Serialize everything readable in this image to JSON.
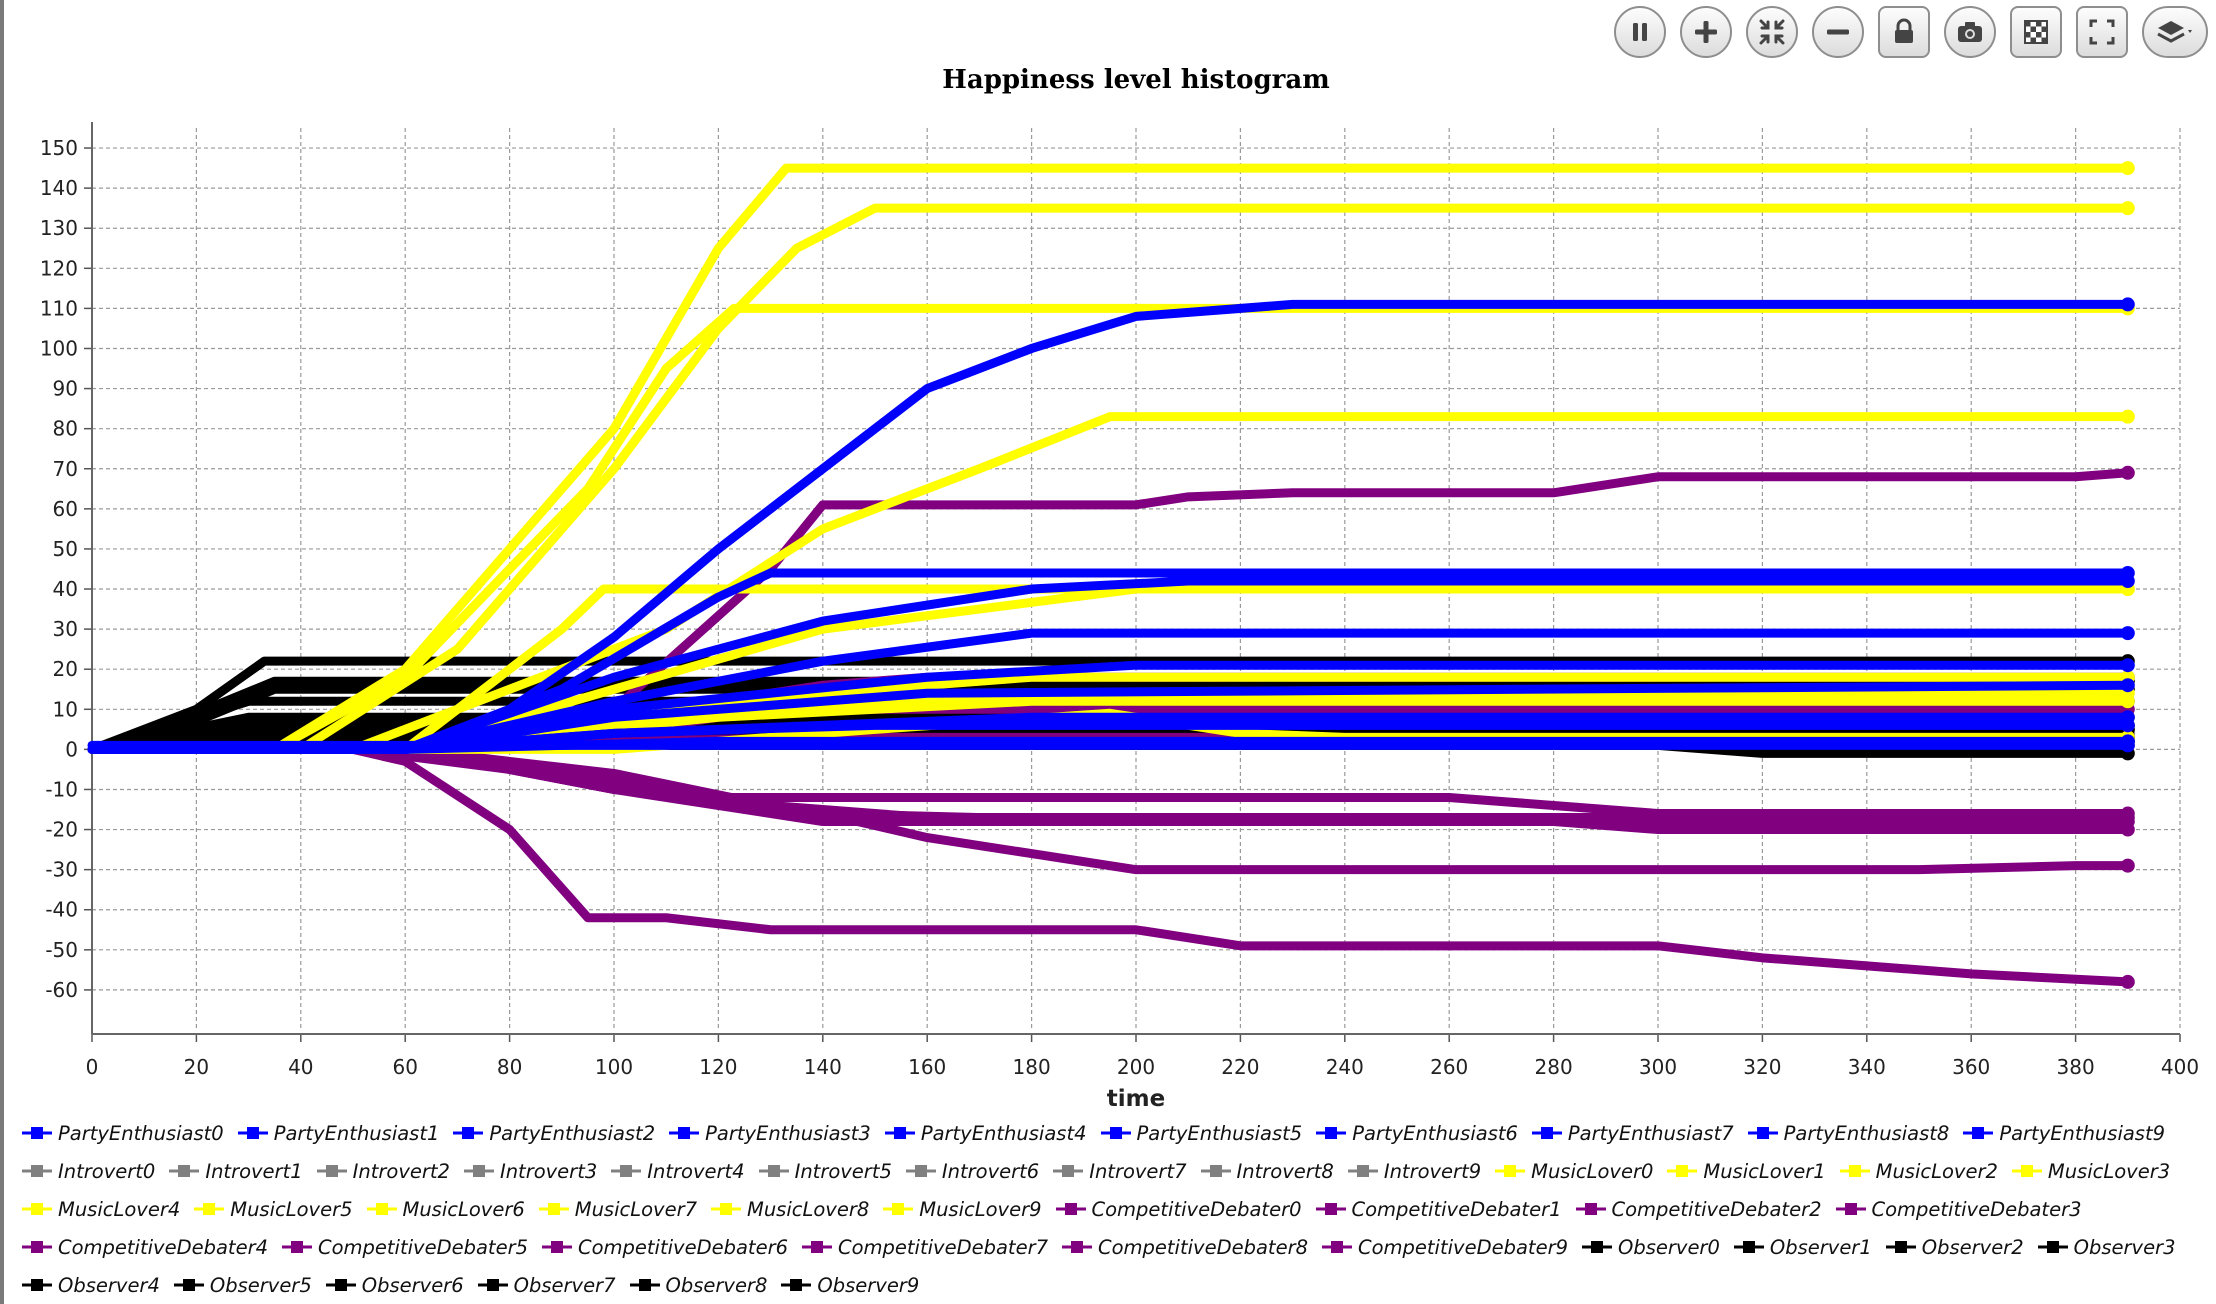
{
  "toolbar": {
    "buttons": [
      {
        "name": "pause-button",
        "icon": "pause-icon"
      },
      {
        "name": "zoom-in-button",
        "icon": "plus-icon"
      },
      {
        "name": "fit-button",
        "icon": "compress-icon"
      },
      {
        "name": "zoom-out-button",
        "icon": "minus-icon"
      },
      {
        "name": "lock-button",
        "icon": "lock-icon"
      },
      {
        "name": "snapshot-button",
        "icon": "camera-icon"
      },
      {
        "name": "background-button",
        "icon": "checkerboard-icon"
      },
      {
        "name": "fullscreen-button",
        "icon": "expand-icon"
      },
      {
        "name": "layers-button",
        "icon": "layers-icon"
      }
    ]
  },
  "chart_data": {
    "type": "line",
    "title": "Happiness level histogram",
    "xlabel": "time",
    "ylabel": "",
    "xlim": [
      0,
      400
    ],
    "ylim": [
      -70,
      155
    ],
    "x_ticks": [
      "0",
      "20",
      "40",
      "60",
      "80",
      "100",
      "120",
      "140",
      "160",
      "180",
      "200",
      "220",
      "240",
      "260",
      "280",
      "300",
      "320",
      "340",
      "360",
      "380",
      "400"
    ],
    "y_ticks": [
      "150",
      "140",
      "130",
      "120",
      "110",
      "100",
      "90",
      "80",
      "70",
      "60",
      "50",
      "40",
      "30",
      "20",
      "10",
      "0",
      "-10",
      "-20",
      "-30",
      "-40",
      "-50",
      "-60"
    ],
    "grid": true,
    "legend_position": "bottom",
    "colors": {
      "PartyEnthusiast": "#0000ff",
      "Introvert": "#808080",
      "MusicLover": "#ffff00",
      "CompetitiveDebater": "#800080",
      "Observer": "#000000"
    },
    "series": [
      {
        "name": "PartyEnthusiast0",
        "group": "PartyEnthusiast",
        "x": [
          0,
          60,
          80,
          100,
          120,
          140,
          160,
          180,
          200,
          230,
          390
        ],
        "y": [
          0,
          0,
          10,
          28,
          50,
          70,
          90,
          100,
          108,
          111,
          111
        ]
      },
      {
        "name": "PartyEnthusiast1",
        "group": "PartyEnthusiast",
        "x": [
          0,
          60,
          90,
          120,
          130,
          390
        ],
        "y": [
          0,
          0,
          15,
          38,
          44,
          44
        ]
      },
      {
        "name": "PartyEnthusiast2",
        "group": "PartyEnthusiast",
        "x": [
          0,
          60,
          100,
          140,
          180,
          210,
          390
        ],
        "y": [
          0,
          0,
          18,
          32,
          40,
          42,
          42
        ]
      },
      {
        "name": "PartyEnthusiast3",
        "group": "PartyEnthusiast",
        "x": [
          0,
          60,
          100,
          140,
          180,
          390
        ],
        "y": [
          0,
          0,
          12,
          22,
          29,
          29
        ]
      },
      {
        "name": "PartyEnthusiast4",
        "group": "PartyEnthusiast",
        "x": [
          0,
          60,
          100,
          160,
          200,
          390
        ],
        "y": [
          0,
          0,
          10,
          18,
          21,
          21
        ]
      },
      {
        "name": "PartyEnthusiast5",
        "group": "PartyEnthusiast",
        "x": [
          0,
          60,
          100,
          160,
          390
        ],
        "y": [
          0,
          0,
          8,
          14,
          16
        ]
      },
      {
        "name": "PartyEnthusiast6",
        "group": "PartyEnthusiast",
        "x": [
          0,
          60,
          100,
          150,
          390
        ],
        "y": [
          0,
          0,
          4,
          6,
          6
        ]
      },
      {
        "name": "PartyEnthusiast7",
        "group": "PartyEnthusiast",
        "x": [
          0,
          390
        ],
        "y": [
          1,
          1
        ]
      },
      {
        "name": "PartyEnthusiast8",
        "group": "PartyEnthusiast",
        "x": [
          0,
          60,
          120,
          390
        ],
        "y": [
          0,
          0,
          2,
          2
        ]
      },
      {
        "name": "PartyEnthusiast9",
        "group": "PartyEnthusiast",
        "x": [
          0,
          60,
          100,
          180,
          390
        ],
        "y": [
          0,
          0,
          4,
          8,
          8
        ]
      },
      {
        "name": "Introvert0",
        "group": "Introvert",
        "x": [
          0,
          20,
          40,
          390
        ],
        "y": [
          0,
          1,
          3,
          3
        ]
      },
      {
        "name": "Introvert1",
        "group": "Introvert",
        "x": [
          0,
          40,
          390
        ],
        "y": [
          0,
          2,
          2
        ]
      },
      {
        "name": "Introvert2",
        "group": "Introvert",
        "x": [
          0,
          30,
          390
        ],
        "y": [
          0,
          4,
          4
        ]
      },
      {
        "name": "Introvert3",
        "group": "Introvert",
        "x": [
          0,
          40,
          390
        ],
        "y": [
          0,
          1,
          1
        ]
      },
      {
        "name": "Introvert4",
        "group": "Introvert",
        "x": [
          0,
          30,
          390
        ],
        "y": [
          0,
          5,
          5
        ]
      },
      {
        "name": "Introvert5",
        "group": "Introvert",
        "x": [
          0,
          50,
          390
        ],
        "y": [
          0,
          3,
          3
        ]
      },
      {
        "name": "Introvert6",
        "group": "Introvert",
        "x": [
          0,
          40,
          390
        ],
        "y": [
          0,
          2,
          2
        ]
      },
      {
        "name": "Introvert7",
        "group": "Introvert",
        "x": [
          0,
          30,
          390
        ],
        "y": [
          0,
          6,
          6
        ]
      },
      {
        "name": "Introvert8",
        "group": "Introvert",
        "x": [
          0,
          40,
          390
        ],
        "y": [
          0,
          1,
          1
        ]
      },
      {
        "name": "Introvert9",
        "group": "Introvert",
        "x": [
          0,
          30,
          390
        ],
        "y": [
          0,
          4,
          4
        ]
      },
      {
        "name": "MusicLover0",
        "group": "MusicLover",
        "x": [
          0,
          35,
          60,
          80,
          100,
          120,
          133,
          390
        ],
        "y": [
          0,
          0,
          20,
          50,
          80,
          125,
          145,
          145
        ]
      },
      {
        "name": "MusicLover1",
        "group": "MusicLover",
        "x": [
          0,
          35,
          60,
          80,
          95,
          110,
          123,
          390
        ],
        "y": [
          0,
          0,
          18,
          45,
          65,
          95,
          110,
          110
        ]
      },
      {
        "name": "MusicLover2",
        "group": "MusicLover",
        "x": [
          0,
          40,
          70,
          100,
          120,
          135,
          150,
          390
        ],
        "y": [
          0,
          0,
          25,
          70,
          105,
          125,
          135,
          135
        ]
      },
      {
        "name": "MusicLover3",
        "group": "MusicLover",
        "x": [
          0,
          50,
          80,
          110,
          140,
          170,
          195,
          390
        ],
        "y": [
          0,
          0,
          15,
          30,
          55,
          70,
          83,
          83
        ]
      },
      {
        "name": "MusicLover4",
        "group": "MusicLover",
        "x": [
          0,
          60,
          90,
          98,
          390
        ],
        "y": [
          0,
          0,
          30,
          40,
          40
        ]
      },
      {
        "name": "MusicLover5",
        "group": "MusicLover",
        "x": [
          0,
          60,
          100,
          140,
          200,
          390
        ],
        "y": [
          0,
          0,
          15,
          30,
          40,
          40
        ]
      },
      {
        "name": "MusicLover6",
        "group": "MusicLover",
        "x": [
          0,
          60,
          120,
          180,
          390
        ],
        "y": [
          0,
          0,
          12,
          18,
          18
        ]
      },
      {
        "name": "MusicLover7",
        "group": "MusicLover",
        "x": [
          0,
          60,
          120,
          180,
          390
        ],
        "y": [
          0,
          0,
          10,
          14,
          14
        ]
      },
      {
        "name": "MusicLover8",
        "group": "MusicLover",
        "x": [
          0,
          60,
          120,
          180,
          390
        ],
        "y": [
          0,
          0,
          8,
          12,
          12
        ]
      },
      {
        "name": "MusicLover9",
        "group": "MusicLover",
        "x": [
          0,
          100,
          150,
          195,
          220,
          240,
          390
        ],
        "y": [
          0,
          0,
          5,
          9,
          4,
          3,
          3
        ]
      },
      {
        "name": "CompetitiveDebater0",
        "group": "CompetitiveDebater",
        "x": [
          0,
          60,
          100,
          130,
          140,
          200,
          210,
          230,
          280,
          290,
          300,
          380,
          390
        ],
        "y": [
          0,
          0,
          10,
          45,
          61,
          61,
          63,
          64,
          64,
          66,
          68,
          68,
          69
        ]
      },
      {
        "name": "CompetitiveDebater1",
        "group": "CompetitiveDebater",
        "x": [
          0,
          60,
          100,
          120,
          140,
          160,
          390
        ],
        "y": [
          0,
          0,
          5,
          12,
          16,
          18,
          18
        ]
      },
      {
        "name": "CompetitiveDebater2",
        "group": "CompetitiveDebater",
        "x": [
          0,
          60,
          100,
          120,
          140,
          390
        ],
        "y": [
          0,
          0,
          4,
          8,
          10,
          10
        ]
      },
      {
        "name": "CompetitiveDebater3",
        "group": "CompetitiveDebater",
        "x": [
          0,
          60,
          100,
          140,
          390
        ],
        "y": [
          0,
          0,
          2,
          3,
          3
        ]
      },
      {
        "name": "CompetitiveDebater4",
        "group": "CompetitiveDebater",
        "x": [
          0,
          50,
          80,
          100,
          120,
          150,
          200,
          260,
          280,
          300,
          390
        ],
        "y": [
          0,
          0,
          -5,
          -10,
          -12,
          -12,
          -12,
          -12,
          -14,
          -16,
          -16
        ]
      },
      {
        "name": "CompetitiveDebater5",
        "group": "CompetitiveDebater",
        "x": [
          0,
          60,
          100,
          140,
          200,
          280,
          300,
          390
        ],
        "y": [
          0,
          0,
          -8,
          -16,
          -18,
          -18,
          -20,
          -20
        ]
      },
      {
        "name": "CompetitiveDebater6",
        "group": "CompetitiveDebater",
        "x": [
          0,
          60,
          100,
          140,
          160,
          180,
          200,
          220,
          350,
          380,
          390
        ],
        "y": [
          0,
          0,
          -10,
          -16,
          -22,
          -26,
          -30,
          -30,
          -30,
          -29,
          -29
        ]
      },
      {
        "name": "CompetitiveDebater7",
        "group": "CompetitiveDebater",
        "x": [
          0,
          50,
          60,
          80,
          95,
          110,
          130,
          140,
          200,
          220,
          300,
          320,
          340,
          360,
          390
        ],
        "y": [
          0,
          0,
          -3,
          -20,
          -42,
          -42,
          -45,
          -45,
          -45,
          -49,
          -49,
          -52,
          -54,
          -56,
          -58
        ]
      },
      {
        "name": "CompetitiveDebater8",
        "group": "CompetitiveDebater",
        "x": [
          0,
          60,
          100,
          140,
          390
        ],
        "y": [
          0,
          0,
          -10,
          -18,
          -18
        ]
      },
      {
        "name": "CompetitiveDebater9",
        "group": "CompetitiveDebater",
        "x": [
          0,
          60,
          100,
          130,
          160,
          390
        ],
        "y": [
          0,
          0,
          -6,
          -14,
          -17,
          -17
        ]
      },
      {
        "name": "Observer0",
        "group": "Observer",
        "x": [
          0,
          20,
          33,
          390
        ],
        "y": [
          0,
          10,
          22,
          22
        ]
      },
      {
        "name": "Observer1",
        "group": "Observer",
        "x": [
          0,
          20,
          35,
          390
        ],
        "y": [
          0,
          9,
          17,
          17
        ]
      },
      {
        "name": "Observer2",
        "group": "Observer",
        "x": [
          0,
          20,
          35,
          390
        ],
        "y": [
          0,
          7,
          15,
          15
        ]
      },
      {
        "name": "Observer3",
        "group": "Observer",
        "x": [
          0,
          30,
          390
        ],
        "y": [
          0,
          12,
          12
        ]
      },
      {
        "name": "Observer4",
        "group": "Observer",
        "x": [
          0,
          30,
          390
        ],
        "y": [
          0,
          8,
          8
        ]
      },
      {
        "name": "Observer5",
        "group": "Observer",
        "x": [
          0,
          30,
          390
        ],
        "y": [
          0,
          5,
          5
        ]
      },
      {
        "name": "Observer6",
        "group": "Observer",
        "x": [
          0,
          30,
          390
        ],
        "y": [
          0,
          3,
          3
        ]
      },
      {
        "name": "Observer7",
        "group": "Observer",
        "x": [
          0,
          30,
          390
        ],
        "y": [
          0,
          6,
          6
        ]
      },
      {
        "name": "Observer8",
        "group": "Observer",
        "x": [
          0,
          30,
          300,
          320,
          390
        ],
        "y": [
          0,
          1,
          1,
          -1,
          -1
        ]
      },
      {
        "name": "Observer9",
        "group": "Observer",
        "x": [
          0,
          30,
          390
        ],
        "y": [
          0,
          2,
          2
        ]
      }
    ]
  }
}
